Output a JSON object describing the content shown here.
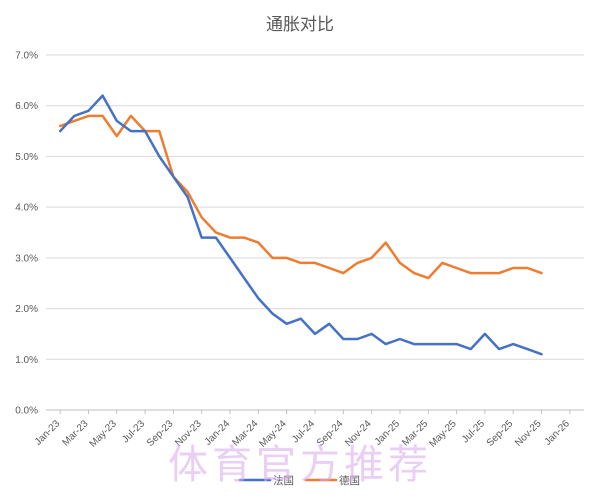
{
  "chart_data": {
    "type": "line",
    "title": "通胀对比",
    "xlabel": "",
    "ylabel": "",
    "y_tick_labels": [
      "0.0%",
      "1.0%",
      "2.0%",
      "3.0%",
      "4.0%",
      "5.0%",
      "6.0%",
      "7.0%"
    ],
    "ylim": [
      0,
      7
    ],
    "x_tick_labels": [
      "Jan-23",
      "Mar-23",
      "May-23",
      "Jul-23",
      "Sep-23",
      "Nov-23",
      "Jan-24",
      "Mar-24",
      "May-24",
      "Jul-24",
      "Sep-24",
      "Nov-24",
      "Jan-25",
      "Mar-25",
      "May-25",
      "Jul-25",
      "Sep-25",
      "Nov-25",
      "Jan-26"
    ],
    "grid": "horizontal",
    "legend_position": "bottom",
    "x": [
      "Jan-23",
      "Feb-23",
      "Mar-23",
      "Apr-23",
      "May-23",
      "Jun-23",
      "Jul-23",
      "Aug-23",
      "Sep-23",
      "Oct-23",
      "Nov-23",
      "Dec-23",
      "Jan-24",
      "Feb-24",
      "Mar-24",
      "Apr-24",
      "May-24",
      "Jun-24",
      "Jul-24",
      "Aug-24",
      "Sep-24",
      "Oct-24",
      "Nov-24",
      "Dec-24",
      "Jan-25",
      "Feb-25",
      "Mar-25",
      "Apr-25",
      "May-25",
      "Jun-25",
      "Jul-25",
      "Aug-25",
      "Sep-25",
      "Oct-25",
      "Nov-25"
    ],
    "series": [
      {
        "name": "法国",
        "color": "#4472C4",
        "values": [
          5.5,
          5.8,
          5.9,
          6.2,
          5.7,
          5.5,
          5.5,
          5.0,
          4.6,
          4.2,
          3.4,
          3.4,
          3.0,
          2.6,
          2.2,
          1.9,
          1.7,
          1.8,
          1.5,
          1.7,
          1.4,
          1.4,
          1.5,
          1.3,
          1.4,
          1.3,
          1.3,
          1.3,
          1.3,
          1.2,
          1.5,
          1.2,
          1.3,
          1.2,
          1.1
        ]
      },
      {
        "name": "德国",
        "color": "#ED7D31",
        "values": [
          5.6,
          5.7,
          5.8,
          5.8,
          5.4,
          5.8,
          5.5,
          5.5,
          4.6,
          4.3,
          3.8,
          3.5,
          3.4,
          3.4,
          3.3,
          3.0,
          3.0,
          2.9,
          2.9,
          2.8,
          2.7,
          2.9,
          3.0,
          3.3,
          2.9,
          2.7,
          2.6,
          2.9,
          2.8,
          2.7,
          2.7,
          2.7,
          2.8,
          2.8,
          2.7
        ]
      }
    ]
  },
  "watermark_text": "体育官方推荐"
}
